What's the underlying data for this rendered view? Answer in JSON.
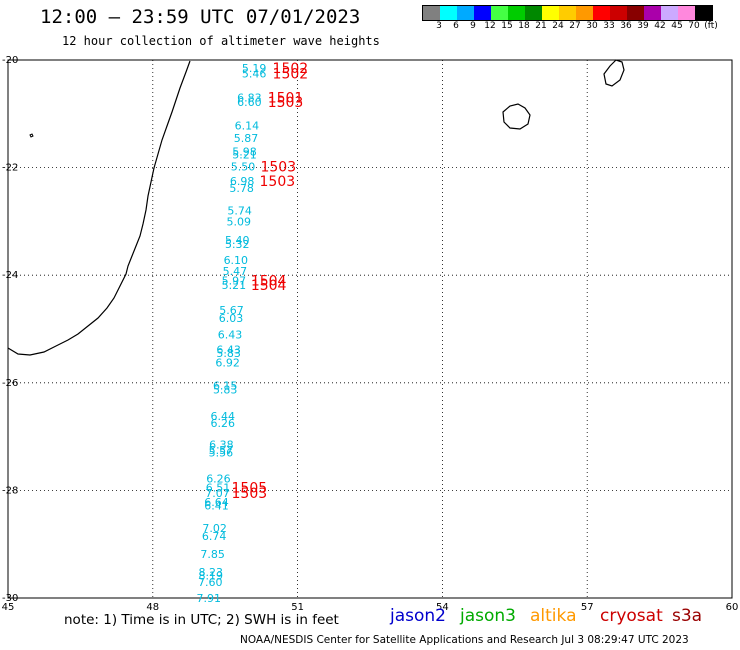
{
  "header": {
    "title": "12:00 — 23:59 UTC 07/01/2023",
    "subtitle": "12 hour collection of altimeter wave heights"
  },
  "colorbar": {
    "colors": [
      "#808080",
      "#00ffff",
      "#00aaff",
      "#0000ff",
      "#44ff44",
      "#00cc00",
      "#008800",
      "#ffff00",
      "#ffcc00",
      "#ff9900",
      "#ff0000",
      "#cc0000",
      "#880000",
      "#aa00aa",
      "#ccaaff",
      "#ff88dd",
      "#000000"
    ],
    "labels": [
      "3",
      "6",
      "9",
      "12",
      "15",
      "18",
      "21",
      "24",
      "27",
      "30",
      "33",
      "36",
      "39",
      "42",
      "45",
      "70",
      "(ft)"
    ]
  },
  "axes": {
    "lon_labels": [
      "45",
      "48",
      "51",
      "54",
      "57",
      "60"
    ],
    "lat_labels": [
      "-20",
      "-22",
      "-24",
      "-26",
      "-28",
      "-30"
    ]
  },
  "observations": [
    {
      "lat": -20.15,
      "lon": 50.1,
      "swh": "5.19"
    },
    {
      "lat": -20.25,
      "lon": 50.1,
      "swh": "5.46"
    },
    {
      "lat": -20.7,
      "lon": 50.0,
      "swh": "6.83"
    },
    {
      "lat": -20.78,
      "lon": 50.0,
      "swh": "6.60"
    },
    {
      "lat": -21.22,
      "lon": 49.95,
      "swh": "6.14"
    },
    {
      "lat": -21.45,
      "lon": 49.93,
      "swh": "5.87"
    },
    {
      "lat": -21.7,
      "lon": 49.9,
      "swh": "5.98"
    },
    {
      "lat": -21.76,
      "lon": 49.9,
      "swh": "5.21"
    },
    {
      "lat": -21.98,
      "lon": 49.87,
      "swh": "5.50"
    },
    {
      "lat": -22.25,
      "lon": 49.85,
      "swh": "6.98"
    },
    {
      "lat": -22.38,
      "lon": 49.84,
      "swh": "5.78"
    },
    {
      "lat": -22.8,
      "lon": 49.8,
      "swh": "5.74"
    },
    {
      "lat": -23.0,
      "lon": 49.78,
      "swh": "5.09"
    },
    {
      "lat": -23.35,
      "lon": 49.75,
      "swh": "5.40"
    },
    {
      "lat": -23.42,
      "lon": 49.75,
      "swh": "5.32"
    },
    {
      "lat": -23.72,
      "lon": 49.72,
      "swh": "6.10"
    },
    {
      "lat": -23.92,
      "lon": 49.7,
      "swh": "5.47"
    },
    {
      "lat": -24.1,
      "lon": 49.68,
      "swh": "5.97"
    },
    {
      "lat": -24.18,
      "lon": 49.68,
      "swh": "5.21"
    },
    {
      "lat": -24.65,
      "lon": 49.63,
      "swh": "5.67"
    },
    {
      "lat": -24.8,
      "lon": 49.62,
      "swh": "6.03"
    },
    {
      "lat": -25.1,
      "lon": 49.6,
      "swh": "6.43"
    },
    {
      "lat": -25.38,
      "lon": 49.57,
      "swh": "6.43"
    },
    {
      "lat": -25.45,
      "lon": 49.57,
      "swh": "5.83"
    },
    {
      "lat": -25.62,
      "lon": 49.55,
      "swh": "6.92"
    },
    {
      "lat": -26.05,
      "lon": 49.5,
      "swh": "6.15"
    },
    {
      "lat": -26.12,
      "lon": 49.5,
      "swh": "5.83"
    },
    {
      "lat": -26.62,
      "lon": 49.45,
      "swh": "6.44"
    },
    {
      "lat": -26.75,
      "lon": 49.45,
      "swh": "6.26"
    },
    {
      "lat": -27.15,
      "lon": 49.42,
      "swh": "6.38"
    },
    {
      "lat": -27.25,
      "lon": 49.41,
      "swh": "5.57"
    },
    {
      "lat": -27.3,
      "lon": 49.41,
      "swh": "5.56"
    },
    {
      "lat": -27.78,
      "lon": 49.36,
      "swh": "6.26"
    },
    {
      "lat": -27.95,
      "lon": 49.35,
      "swh": "6.51"
    },
    {
      "lat": -28.05,
      "lon": 49.34,
      "swh": "7.07"
    },
    {
      "lat": -28.22,
      "lon": 49.32,
      "swh": "6.64"
    },
    {
      "lat": -28.28,
      "lon": 49.32,
      "swh": "6.41"
    },
    {
      "lat": -28.7,
      "lon": 49.28,
      "swh": "7.02"
    },
    {
      "lat": -28.85,
      "lon": 49.27,
      "swh": "6.74"
    },
    {
      "lat": -29.18,
      "lon": 49.24,
      "swh": "7.85"
    },
    {
      "lat": -29.52,
      "lon": 49.2,
      "swh": "8.23"
    },
    {
      "lat": -29.58,
      "lon": 49.2,
      "swh": "8.19"
    },
    {
      "lat": -29.7,
      "lon": 49.19,
      "swh": "7.60"
    },
    {
      "lat": -30.0,
      "lon": 49.16,
      "swh": "7.91"
    }
  ],
  "time_labels": [
    {
      "lat": -20.15,
      "lon": 50.85,
      "text": "1502"
    },
    {
      "lat": -20.25,
      "lon": 50.85,
      "text": "1502"
    },
    {
      "lat": -20.7,
      "lon": 50.75,
      "text": "1501"
    },
    {
      "lat": -20.78,
      "lon": 50.75,
      "text": "1503"
    },
    {
      "lat": -21.98,
      "lon": 50.6,
      "text": "1503"
    },
    {
      "lat": -22.25,
      "lon": 50.58,
      "text": "1503"
    },
    {
      "lat": -24.1,
      "lon": 50.4,
      "text": "1504"
    },
    {
      "lat": -24.18,
      "lon": 50.4,
      "text": "1504"
    },
    {
      "lat": -27.95,
      "lon": 50.0,
      "text": "1505"
    },
    {
      "lat": -28.05,
      "lon": 50.0,
      "text": "1503"
    }
  ],
  "satellites": [
    {
      "name": "jason2",
      "color": "#0000cc"
    },
    {
      "name": "jason3",
      "color": "#00aa00"
    },
    {
      "name": "altika",
      "color": "#ff9900"
    },
    {
      "name": "cryosat",
      "color": "#cc0000"
    },
    {
      "name": "s3a",
      "color": "#990000"
    }
  ],
  "colors": {
    "swh_text": "#00bbdd",
    "time_text": "#ee0000",
    "grid": "#000000",
    "coast": "#000000"
  },
  "footer": {
    "note": "note:  1) Time is in UTC;  2) SWH is in feet",
    "credit": "NOAA/NESDIS Center for Satellite Applications and Research    Jul  3 08:29:47 UTC 2023"
  }
}
